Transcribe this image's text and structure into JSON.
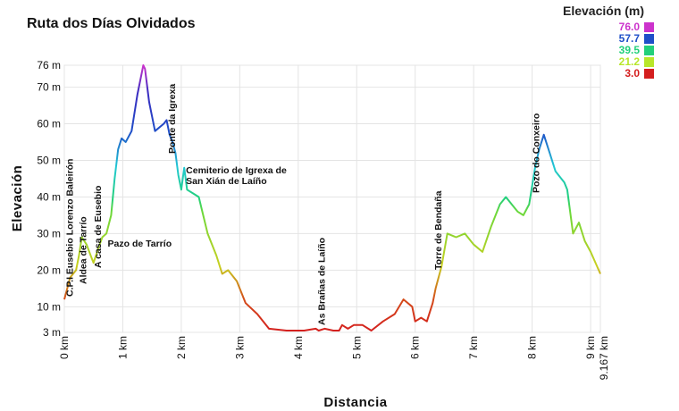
{
  "chart_data": {
    "type": "line",
    "title": "Ruta dos Días Olvidados",
    "xlabel": "Distancia",
    "ylabel": "Elevación",
    "xlim": [
      0,
      9.167
    ],
    "ylim": [
      3,
      76
    ],
    "x_ticks": [
      "0 km",
      "1 km",
      "2 km",
      "3 km",
      "4 km",
      "5 km",
      "6 km",
      "7 km",
      "8 km",
      "9 km",
      "9.167 km"
    ],
    "x_tick_values": [
      0,
      1,
      2,
      3,
      4,
      5,
      6,
      7,
      8,
      9,
      9.167
    ],
    "y_ticks": [
      "3 m",
      "10 m",
      "20 m",
      "30 m",
      "40 m",
      "50 m",
      "60 m",
      "70 m",
      "76 m"
    ],
    "y_tick_values": [
      3,
      10,
      20,
      30,
      40,
      50,
      60,
      70,
      76
    ],
    "grid": true,
    "legend": {
      "title": "Elevación (m)",
      "placement": "top-right",
      "items": [
        {
          "label": "76.0",
          "color": "#cc33cc"
        },
        {
          "label": "57.7",
          "color": "#1f4fc8"
        },
        {
          "label": "39.5",
          "color": "#22d07a"
        },
        {
          "label": "21.2",
          "color": "#b8e62a"
        },
        {
          "label": "3.0",
          "color": "#d41e1e"
        }
      ]
    },
    "series": [
      {
        "x": [
          0.0,
          0.1,
          0.2,
          0.25,
          0.3,
          0.38,
          0.45,
          0.5,
          0.58,
          0.65,
          0.72,
          0.8,
          0.86,
          0.92,
          0.98,
          1.05,
          1.15,
          1.25,
          1.35,
          1.38,
          1.45,
          1.55,
          1.7,
          1.75,
          1.8,
          1.85,
          1.9,
          1.95,
          2.0,
          2.05,
          2.1,
          2.2,
          2.3,
          2.45,
          2.6,
          2.7,
          2.8,
          2.95,
          3.1,
          3.3,
          3.5,
          3.8,
          4.1,
          4.3,
          4.35,
          4.45,
          4.6,
          4.7,
          4.75,
          4.85,
          4.95,
          5.1,
          5.25,
          5.45,
          5.65,
          5.8,
          5.95,
          6.0,
          6.1,
          6.2,
          6.3,
          6.35,
          6.45,
          6.55,
          6.7,
          6.85,
          7.0,
          7.15,
          7.3,
          7.45,
          7.55,
          7.65,
          7.75,
          7.85,
          7.95,
          8.05,
          8.12,
          8.2,
          8.3,
          8.4,
          8.5,
          8.55,
          8.6,
          8.7,
          8.8,
          8.9,
          9.0,
          9.167
        ],
        "values": [
          12,
          18,
          20,
          24,
          29,
          27,
          24,
          22,
          26,
          29,
          30,
          35,
          45,
          53,
          56,
          55,
          58,
          68,
          76,
          75,
          66,
          58,
          60,
          61,
          57,
          55,
          52,
          46,
          42,
          48,
          42,
          41,
          40,
          30,
          24,
          19,
          20,
          17,
          11,
          8,
          4,
          3.5,
          3.5,
          4,
          3.5,
          4,
          3.5,
          3.5,
          5,
          4,
          5,
          5,
          3.5,
          6,
          8,
          12,
          10,
          6,
          7,
          6,
          11,
          15,
          21,
          30,
          29,
          30,
          27,
          25,
          32,
          38,
          40,
          38,
          36,
          35,
          38,
          48,
          53,
          57,
          52,
          47,
          45,
          44,
          42,
          30,
          33,
          28,
          25,
          19
        ]
      }
    ],
    "annotations": [
      {
        "label": "C.P.I Eusebio Lorenzo Baleirón",
        "x": 0.1
      },
      {
        "label": "Aldea de Tarrío",
        "x": 0.3
      },
      {
        "label": "A casa de Eusebio",
        "x": 0.55
      },
      {
        "label": "Pazo de Tarrío",
        "x": 0.65
      },
      {
        "label": "Ponte da Igrexa",
        "x": 1.85
      },
      {
        "label": "Cemiterio de Igrexa de",
        "x": 2.05
      },
      {
        "label": "San Xián de Laíño",
        "x": 2.05
      },
      {
        "label": "As Brañas de Laíño",
        "x": 4.45
      },
      {
        "label": "Torre de Bendaña",
        "x": 6.45
      },
      {
        "label": "Pozo do Conxeiro",
        "x": 8.12
      }
    ]
  }
}
